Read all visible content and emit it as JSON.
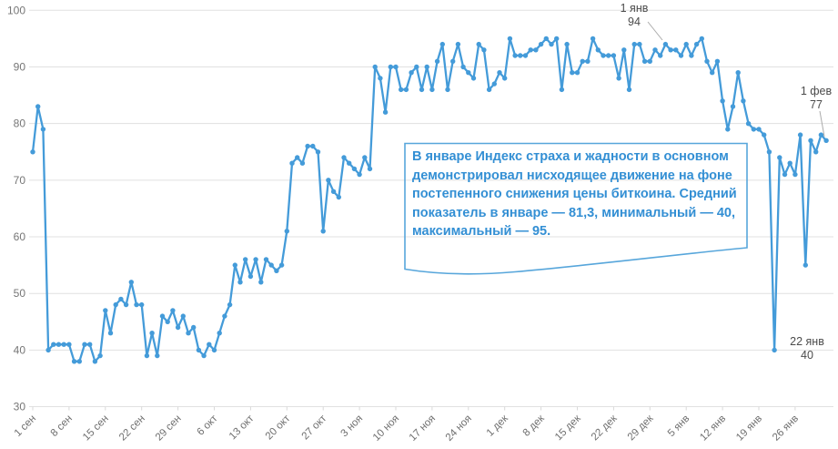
{
  "chart_data": {
    "type": "line",
    "title": "",
    "description": "Индекс страха и жадности, дневные значения с 1 сентября по 1 февраля",
    "x_tick_labels": [
      "1 сен",
      "8 сен",
      "15 сен",
      "22 сен",
      "29 сен",
      "6 окт",
      "13 окт",
      "20 окт",
      "27 окт",
      "3 ноя",
      "10 ноя",
      "17 ноя",
      "24 ноя",
      "1 дек",
      "8 дек",
      "15 дек",
      "22 дек",
      "29 дек",
      "5 янв",
      "12 янв",
      "19 янв",
      "26 янв"
    ],
    "x_tick_day_indices": [
      0,
      7,
      14,
      21,
      28,
      35,
      42,
      49,
      56,
      63,
      70,
      77,
      84,
      91,
      98,
      105,
      112,
      119,
      126,
      133,
      140,
      147
    ],
    "y_ticks": [
      30,
      40,
      50,
      60,
      70,
      80,
      90,
      100
    ],
    "ylim": [
      30,
      100
    ],
    "grid": "horizontal",
    "legend": "none",
    "values": [
      75,
      83,
      79,
      40,
      41,
      41,
      41,
      41,
      38,
      38,
      41,
      41,
      38,
      39,
      47,
      43,
      48,
      49,
      48,
      52,
      48,
      48,
      39,
      43,
      39,
      46,
      45,
      47,
      44,
      46,
      43,
      44,
      40,
      39,
      41,
      40,
      43,
      46,
      48,
      55,
      52,
      56,
      53,
      56,
      52,
      56,
      55,
      54,
      55,
      61,
      73,
      74,
      73,
      76,
      76,
      75,
      61,
      70,
      68,
      67,
      74,
      73,
      72,
      71,
      74,
      72,
      90,
      88,
      82,
      90,
      90,
      86,
      86,
      89,
      90,
      86,
      90,
      86,
      91,
      94,
      86,
      91,
      94,
      90,
      89,
      88,
      94,
      93,
      86,
      87,
      89,
      88,
      95,
      92,
      92,
      92,
      93,
      93,
      94,
      95,
      94,
      95,
      86,
      94,
      89,
      89,
      91,
      91,
      95,
      93,
      92,
      92,
      92,
      88,
      93,
      86,
      94,
      94,
      91,
      91,
      93,
      92,
      94,
      93,
      93,
      92,
      94,
      92,
      94,
      95,
      91,
      89,
      91,
      84,
      79,
      83,
      89,
      84,
      80,
      79,
      79,
      78,
      75,
      40,
      74,
      71,
      73,
      71,
      78,
      55,
      77,
      75,
      78,
      77
    ]
  },
  "annotations": {
    "jan1": {
      "date": "1 янв",
      "value": "94"
    },
    "feb1": {
      "date": "1 фев",
      "value": "77"
    },
    "jan22": {
      "date": "22 янв",
      "value": "40"
    }
  },
  "callout": {
    "lines": [
      "В январе Индекс страха и жадности в основном",
      "демонстрировал нисходящее движение на фоне",
      "постепенного снижения цены биткоина. Средний",
      "показатель в январе — 81,3, минимальный — 40,",
      "максимальный — 95."
    ]
  },
  "colors": {
    "line": "#449bd9",
    "dot": "#449bd9",
    "grid": "#e1e1e1",
    "tick": "#d9d9d9",
    "axis_text": "#767676",
    "annotation_text": "#4b4b4b",
    "leader_line": "#ababab",
    "callout_border": "#57a6db",
    "callout_text": "#338fd4",
    "background": "#ffffff"
  }
}
